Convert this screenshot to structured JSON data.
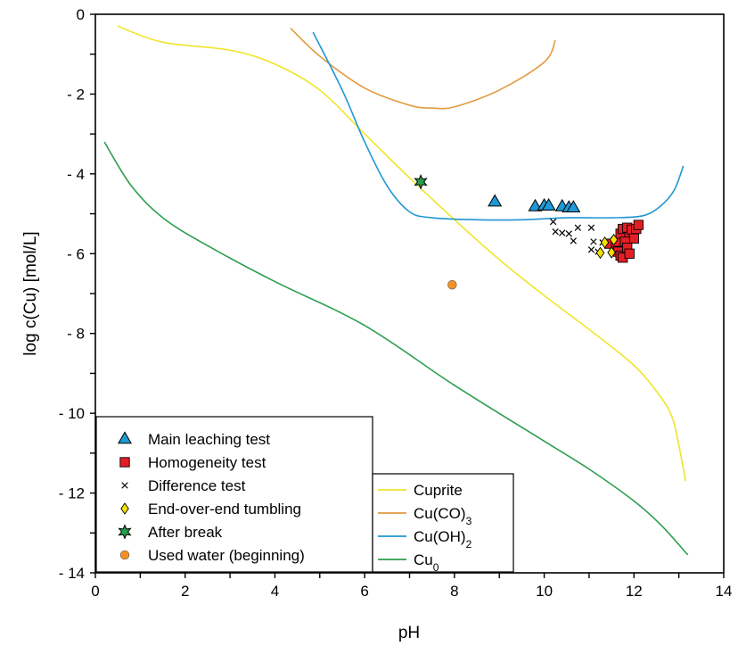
{
  "chart_data": {
    "type": "scatter",
    "title": "",
    "xlabel": "pH",
    "ylabel": "log c(Cu) [mol/L]",
    "xlim": [
      0,
      14
    ],
    "ylim": [
      -14,
      0
    ],
    "x_ticks": [
      0,
      2,
      4,
      6,
      8,
      10,
      12,
      14
    ],
    "x_tick_labels": [
      "0",
      "2",
      "4",
      "6",
      "8",
      "10",
      "12",
      "14"
    ],
    "y_ticks": [
      0,
      -2,
      -4,
      -6,
      -8,
      -10,
      -12,
      -14
    ],
    "y_tick_labels": [
      "0",
      "- 2",
      "- 4",
      "- 6",
      "- 8",
      "- 10",
      "- 12",
      "- 14"
    ],
    "grid": false,
    "legend_placement": "bottom-left",
    "marker_series": [
      {
        "name": "Main leaching test",
        "marker": "triangle",
        "color": "#1f9ad6",
        "points": [
          [
            8.9,
            -4.7
          ],
          [
            9.8,
            -4.82
          ],
          [
            10.0,
            -4.8
          ],
          [
            10.1,
            -4.8
          ],
          [
            10.4,
            -4.82
          ],
          [
            10.55,
            -4.85
          ],
          [
            10.65,
            -4.85
          ]
        ]
      },
      {
        "name": "Homogeneity test",
        "marker": "square",
        "color": "#e31e24",
        "points": [
          [
            11.45,
            -5.75
          ],
          [
            11.6,
            -5.7
          ],
          [
            11.65,
            -5.95
          ],
          [
            11.7,
            -6.05
          ],
          [
            11.75,
            -6.1
          ],
          [
            11.7,
            -5.5
          ],
          [
            11.75,
            -5.38
          ],
          [
            11.85,
            -5.35
          ],
          [
            11.9,
            -5.58
          ],
          [
            11.95,
            -5.4
          ],
          [
            12.0,
            -5.62
          ],
          [
            12.05,
            -5.38
          ],
          [
            12.1,
            -5.28
          ],
          [
            11.8,
            -5.7
          ],
          [
            11.85,
            -5.85
          ],
          [
            11.9,
            -6.0
          ]
        ]
      },
      {
        "name": "Difference test",
        "marker": "cross",
        "color": "#000000",
        "points": [
          [
            10.2,
            -5.2
          ],
          [
            10.25,
            -5.45
          ],
          [
            10.4,
            -5.48
          ],
          [
            10.55,
            -5.5
          ],
          [
            10.75,
            -5.35
          ],
          [
            10.65,
            -5.68
          ],
          [
            11.05,
            -5.35
          ],
          [
            11.1,
            -5.7
          ],
          [
            11.05,
            -5.9
          ],
          [
            11.2,
            -5.95
          ],
          [
            11.3,
            -5.72
          ]
        ]
      },
      {
        "name": "End-over-end tumbling",
        "marker": "diamond",
        "color": "#f5e100",
        "points": [
          [
            11.25,
            -5.98
          ],
          [
            11.5,
            -5.97
          ],
          [
            11.35,
            -5.72
          ],
          [
            11.55,
            -5.65
          ]
        ]
      },
      {
        "name": "After break",
        "marker": "star",
        "color": "#27a04a",
        "points": [
          [
            7.25,
            -4.2
          ]
        ]
      },
      {
        "name": "Used water (beginning)",
        "marker": "circle",
        "color": "#f39222",
        "points": [
          [
            7.95,
            -6.78
          ]
        ]
      }
    ],
    "line_series": [
      {
        "name": "Cuprite",
        "color": "#f0e52a",
        "points": [
          [
            0.5,
            -0.3
          ],
          [
            1.5,
            -0.7
          ],
          [
            3.0,
            -0.9
          ],
          [
            4.0,
            -1.25
          ],
          [
            5.0,
            -1.9
          ],
          [
            6.0,
            -3.0
          ],
          [
            7.0,
            -4.1
          ],
          [
            8.0,
            -5.15
          ],
          [
            9.0,
            -6.15
          ],
          [
            10.0,
            -7.05
          ],
          [
            11.0,
            -7.9
          ],
          [
            12.0,
            -8.8
          ],
          [
            12.6,
            -9.6
          ],
          [
            12.85,
            -10.1
          ],
          [
            13.0,
            -10.8
          ],
          [
            13.15,
            -11.7
          ]
        ]
      },
      {
        "name": "Cu(CO)3",
        "color": "#e29a3f",
        "points": [
          [
            4.35,
            -0.35
          ],
          [
            5.0,
            -1.05
          ],
          [
            6.0,
            -1.85
          ],
          [
            7.0,
            -2.28
          ],
          [
            7.5,
            -2.35
          ],
          [
            8.0,
            -2.32
          ],
          [
            9.0,
            -1.9
          ],
          [
            10.0,
            -1.2
          ],
          [
            10.25,
            -0.65
          ]
        ]
      },
      {
        "name": "Cu(OH)2",
        "color": "#2196d3",
        "points": [
          [
            4.85,
            -0.45
          ],
          [
            5.5,
            -1.9
          ],
          [
            6.0,
            -3.2
          ],
          [
            6.5,
            -4.3
          ],
          [
            7.0,
            -4.95
          ],
          [
            7.5,
            -5.1
          ],
          [
            8.5,
            -5.15
          ],
          [
            9.5,
            -5.15
          ],
          [
            10.5,
            -5.1
          ],
          [
            11.5,
            -5.1
          ],
          [
            12.2,
            -5.05
          ],
          [
            12.6,
            -4.8
          ],
          [
            12.9,
            -4.4
          ],
          [
            13.1,
            -3.8
          ]
        ]
      },
      {
        "name": "Cu0",
        "color": "#2e9e4f",
        "points": [
          [
            0.2,
            -3.2
          ],
          [
            0.8,
            -4.3
          ],
          [
            1.5,
            -5.1
          ],
          [
            2.5,
            -5.8
          ],
          [
            4.0,
            -6.7
          ],
          [
            6.0,
            -7.8
          ],
          [
            8.0,
            -9.3
          ],
          [
            10.0,
            -10.7
          ],
          [
            11.0,
            -11.4
          ],
          [
            12.0,
            -12.2
          ],
          [
            12.6,
            -12.8
          ],
          [
            13.2,
            -13.55
          ]
        ]
      }
    ]
  }
}
